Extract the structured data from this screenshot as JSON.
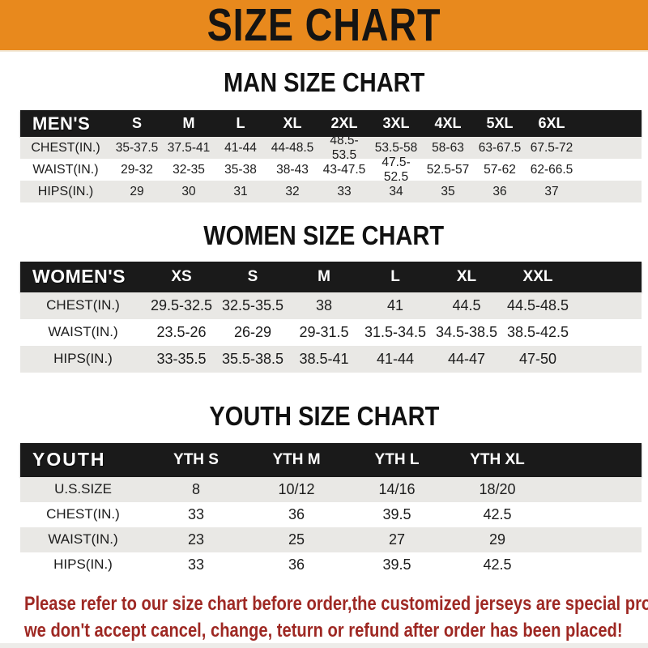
{
  "banner": {
    "title": "SIZE CHART"
  },
  "sections": [
    {
      "title": "MAN SIZE CHART",
      "header_label": "MEN'S",
      "columns": [
        "S",
        "M",
        "L",
        "XL",
        "2XL",
        "3XL",
        "4XL",
        "5XL",
        "6XL"
      ],
      "rows": [
        {
          "label": "CHEST(IN.)",
          "values": [
            "35-37.5",
            "37.5-41",
            "41-44",
            "44-48.5",
            "48.5-53.5",
            "53.5-58",
            "58-63",
            "63-67.5",
            "67.5-72"
          ]
        },
        {
          "label": "WAIST(IN.)",
          "values": [
            "29-32",
            "32-35",
            "35-38",
            "38-43",
            "43-47.5",
            "47.5-52.5",
            "52.5-57",
            "57-62",
            "62-66.5"
          ]
        },
        {
          "label": "HIPS(IN.)",
          "values": [
            "29",
            "30",
            "31",
            "32",
            "33",
            "34",
            "35",
            "36",
            "37"
          ]
        }
      ]
    },
    {
      "title": "WOMEN SIZE CHART",
      "header_label": "WOMEN'S",
      "columns": [
        "XS",
        "S",
        "M",
        "L",
        "XL",
        "XXL"
      ],
      "rows": [
        {
          "label": "CHEST(IN.)",
          "values": [
            "29.5-32.5",
            "32.5-35.5",
            "38",
            "41",
            "44.5",
            "44.5-48.5"
          ]
        },
        {
          "label": "WAIST(IN.)",
          "values": [
            "23.5-26",
            "26-29",
            "29-31.5",
            "31.5-34.5",
            "34.5-38.5",
            "38.5-42.5"
          ]
        },
        {
          "label": "HIPS(IN.)",
          "values": [
            "33-35.5",
            "35.5-38.5",
            "38.5-41",
            "41-44",
            "44-47",
            "47-50"
          ]
        }
      ]
    },
    {
      "title": "YOUTH SIZE CHART",
      "header_label": "YOUTH",
      "columns": [
        "YTH S",
        "YTH M",
        "YTH L",
        "YTH XL"
      ],
      "rows": [
        {
          "label": "U.S.SIZE",
          "values": [
            "8",
            "10/12",
            "14/16",
            "18/20"
          ]
        },
        {
          "label": "CHEST(IN.)",
          "values": [
            "33",
            "36",
            "39.5",
            "42.5"
          ]
        },
        {
          "label": "WAIST(IN.)",
          "values": [
            "23",
            "25",
            "27",
            "29"
          ]
        },
        {
          "label": "HIPS(IN.)",
          "values": [
            "33",
            "36",
            "39.5",
            "42.5"
          ]
        }
      ]
    }
  ],
  "footer": {
    "line1": "Please refer to our size chart before order,the customized jerseys are special products,",
    "line2": "we don't accept cancel, change, teturn or refund after order has been placed!"
  },
  "colors": {
    "banner_bg": "#e8891d",
    "banner_text": "#151413",
    "header_bar_bg": "#1a1a1a",
    "header_bar_text": "#ffffff",
    "alt_row_bg": "#e9e8e5",
    "footer_text": "#9e2823"
  }
}
